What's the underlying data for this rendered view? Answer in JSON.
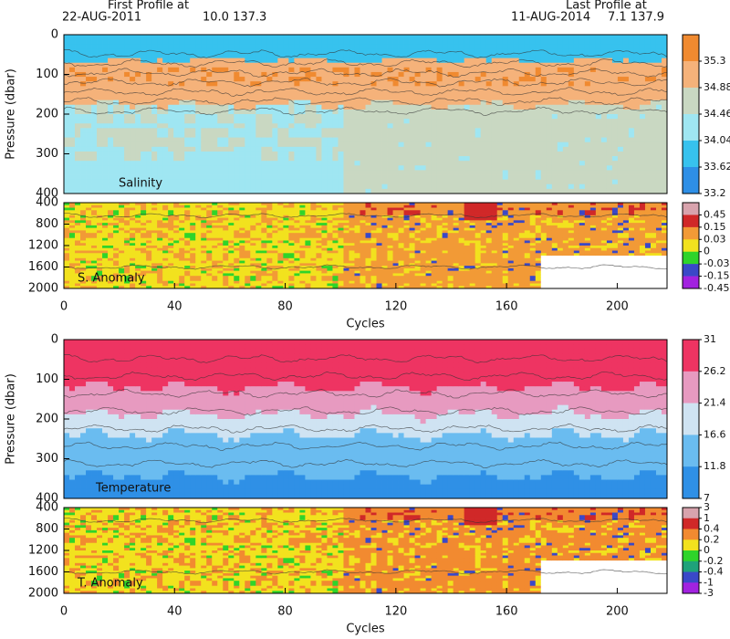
{
  "header": {
    "first_label": "First Profile at",
    "first_date": "22-AUG-2011",
    "first_pos": "10.0 137.3",
    "last_label": "Last Profile at",
    "last_date": "11-AUG-2014",
    "last_pos": "7.1 137.9"
  },
  "chart_data": [
    {
      "type": "heatmap",
      "field": "salinity",
      "ylabel": "Pressure (dbar)",
      "annotation": "Salinity",
      "xlim": [
        0,
        218
      ],
      "ylim": [
        0,
        400
      ],
      "yticks": [
        0,
        100,
        200,
        300,
        400
      ],
      "colorbar": {
        "ticks": [
          35.3,
          34.88,
          34.46,
          34.04,
          33.62,
          33.2
        ],
        "colors": [
          "#f08a30",
          "#f5b27a",
          "#c9d8c2",
          "#9fe6f2",
          "#37c2ee",
          "#2e8fe6"
        ]
      }
    },
    {
      "type": "heatmap",
      "field": "anomaly",
      "annotation": "S. Anomaly",
      "xlabel": "Cycles",
      "xlim": [
        0,
        218
      ],
      "xticks": [
        0,
        40,
        80,
        120,
        160,
        200
      ],
      "ylim": [
        400,
        2000
      ],
      "yticks": [
        400,
        800,
        1200,
        1600,
        2000
      ],
      "colorbar": {
        "ticks": [
          0.45,
          0.15,
          0.03,
          0,
          -0.03,
          -0.15,
          -0.45
        ],
        "colors": [
          "#d8a3ad",
          "#d02828",
          "#f29a36",
          "#f2e21e",
          "#2fd42a",
          "#3a48c8",
          "#a222e0"
        ]
      }
    },
    {
      "type": "heatmap",
      "field": "temperature",
      "ylabel": "Pressure (dbar)",
      "annotation": "Temperature",
      "xlim": [
        0,
        218
      ],
      "ylim": [
        0,
        400
      ],
      "yticks": [
        0,
        100,
        200,
        300,
        400
      ],
      "colorbar": {
        "ticks": [
          31,
          26.2,
          21.4,
          16.6,
          11.8,
          7
        ],
        "colors": [
          "#ee3462",
          "#e79ac0",
          "#cfe3f2",
          "#6abcf0",
          "#2f90e6"
        ]
      }
    },
    {
      "type": "heatmap",
      "field": "anomaly",
      "annotation": "T. Anomaly",
      "xlabel": "Cycles",
      "xlim": [
        0,
        218
      ],
      "xticks": [
        0,
        40,
        80,
        120,
        160,
        200
      ],
      "ylim": [
        400,
        2000
      ],
      "yticks": [
        400,
        800,
        1200,
        1600,
        2000
      ],
      "colorbar": {
        "ticks": [
          3,
          1,
          0.4,
          0.2,
          0,
          -0.2,
          -0.4,
          -1,
          -3
        ],
        "colors": [
          "#d8a3ad",
          "#d02828",
          "#f28a30",
          "#f2e21e",
          "#2fd42a",
          "#1fa27a",
          "#3a48c8",
          "#a222e0"
        ]
      }
    }
  ]
}
